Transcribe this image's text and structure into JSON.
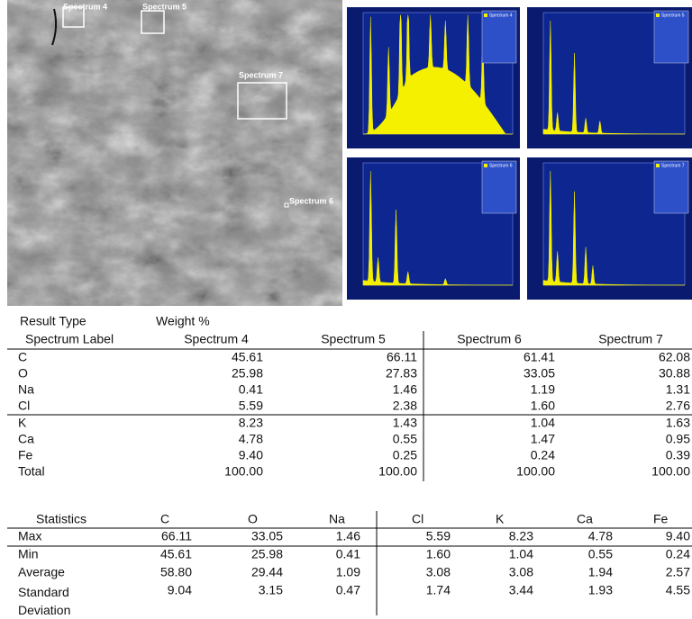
{
  "image": {
    "labels": [
      "Spectrum 4",
      "Spectrum 5",
      "Spectrum 7",
      "Spectrum 6"
    ]
  },
  "spectra": [
    {
      "title": "Spectrum 4"
    },
    {
      "title": "Spectrum 5"
    },
    {
      "title": "Spectrum 6"
    },
    {
      "title": "Spectrum 7"
    }
  ],
  "weight_table": {
    "result_type_label": "Result Type",
    "unit_label": "Weight %",
    "label_header": "Spectrum Label",
    "columns": [
      "Spectrum 4",
      "Spectrum 5",
      "Spectrum 6",
      "Spectrum 7"
    ],
    "rows": [
      [
        "C",
        "45.61",
        "66.11",
        "61.41",
        "62.08"
      ],
      [
        "O",
        "25.98",
        "27.83",
        "33.05",
        "30.88"
      ],
      [
        "Na",
        "0.41",
        "1.46",
        "1.19",
        "1.31"
      ],
      [
        "Cl",
        "5.59",
        "2.38",
        "1.60",
        "2.76"
      ],
      [
        "K",
        "8.23",
        "1.43",
        "1.04",
        "1.63"
      ],
      [
        "Ca",
        "4.78",
        "0.55",
        "1.47",
        "0.95"
      ],
      [
        "Fe",
        "9.40",
        "0.25",
        "0.24",
        "0.39"
      ],
      [
        "Total",
        "100.00",
        "100.00",
        "100.00",
        "100.00"
      ]
    ]
  },
  "stats_table": {
    "header": [
      "Statistics",
      "C",
      "O",
      "Na",
      "Cl",
      "K",
      "Ca",
      "Fe"
    ],
    "rows": [
      [
        "Max",
        "66.11",
        "33.05",
        "1.46",
        "5.59",
        "8.23",
        "4.78",
        "9.40"
      ],
      [
        "Min",
        "45.61",
        "25.98",
        "0.41",
        "1.60",
        "1.04",
        "0.55",
        "0.24"
      ],
      [
        "Average",
        "58.80",
        "29.44",
        "1.09",
        "3.08",
        "3.08",
        "1.94",
        "2.57"
      ],
      [
        "Standard Deviation",
        "9.04",
        "3.15",
        "0.47",
        "1.74",
        "3.44",
        "1.93",
        "4.55"
      ]
    ]
  }
}
